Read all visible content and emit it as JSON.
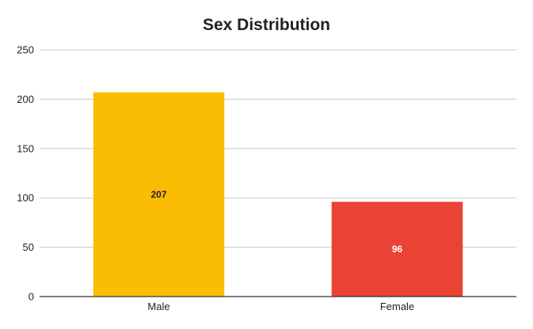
{
  "chart_data": {
    "type": "bar",
    "title": "Sex Distribution",
    "xlabel": "",
    "ylabel": "",
    "categories": [
      "Male",
      "Female"
    ],
    "values": [
      207,
      96
    ],
    "data_labels": [
      "207",
      "96"
    ],
    "ylim": [
      0,
      250
    ],
    "yticks": [
      0,
      50,
      100,
      150,
      200,
      250
    ],
    "ytick_labels": [
      "0",
      "50",
      "100",
      "150",
      "200",
      "250"
    ],
    "bar_colors": [
      "#fbbc04",
      "#ea4335"
    ],
    "data_label_colors": [
      "#222222",
      "#ffffff"
    ],
    "grid": true,
    "legend": "none"
  }
}
